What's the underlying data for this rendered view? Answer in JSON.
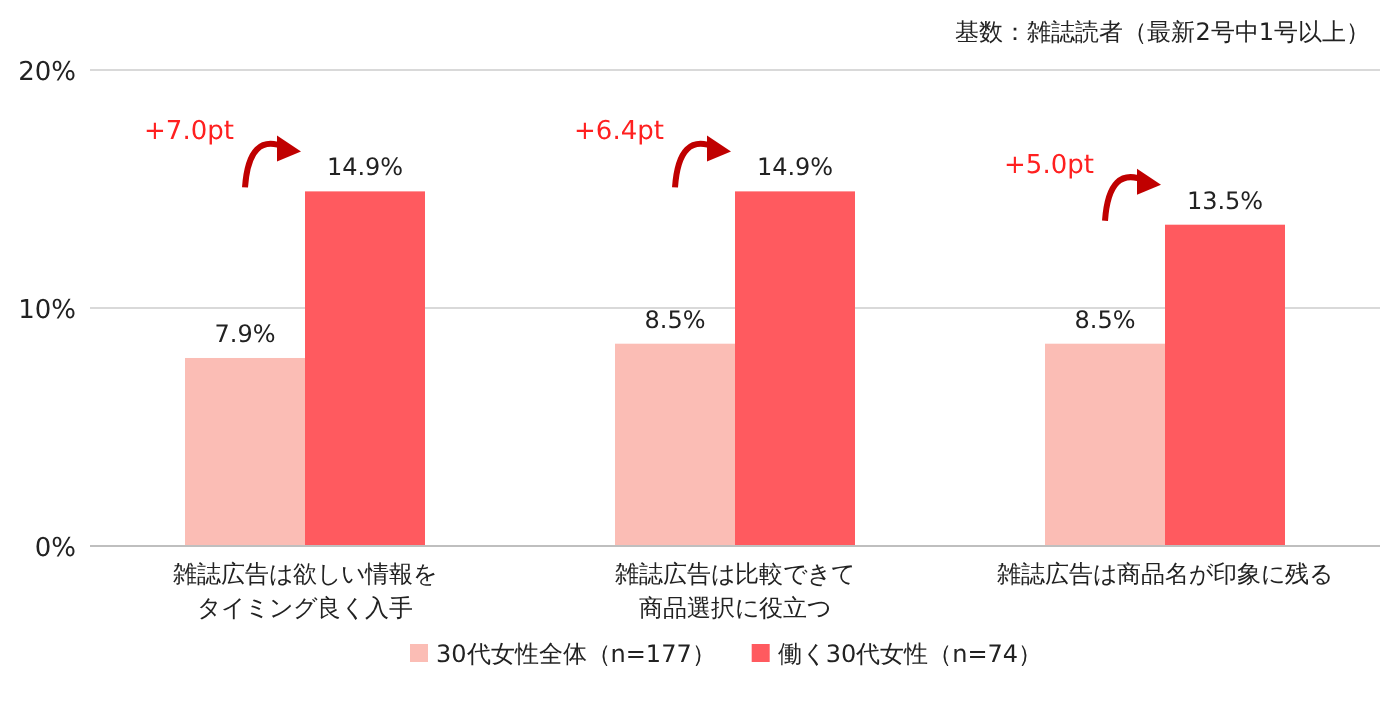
{
  "chart_data": {
    "type": "bar",
    "subtitle": "基数：雑誌読者（最新2号中1号以上）",
    "categories": [
      "雑誌広告は欲しい情報をタイミング良く入手",
      "雑誌広告は比較できて商品選択に役立つ",
      "雑誌広告は商品名が印象に残る"
    ],
    "series": [
      {
        "name": "30代女性全体（n=177）",
        "color": "#fbbdb5",
        "values": [
          7.9,
          8.5,
          8.5
        ],
        "value_labels": [
          "7.9%",
          "8.5%",
          "8.5%"
        ]
      },
      {
        "name": "働く30代女性（n=74）",
        "color": "#ff5a5f",
        "values": [
          14.9,
          14.9,
          13.5
        ],
        "value_labels": [
          "14.9%",
          "14.9%",
          "13.5%"
        ]
      }
    ],
    "ylim": [
      0,
      20
    ],
    "yticks": [
      {
        "value": 0,
        "label": "0%"
      },
      {
        "value": 10,
        "label": "10%"
      },
      {
        "value": 20,
        "label": "20%"
      }
    ],
    "grid": "y",
    "legend": "bottom",
    "annotations": [
      "+7.0pt",
      "+6.4pt",
      "+5.0pt"
    ]
  }
}
